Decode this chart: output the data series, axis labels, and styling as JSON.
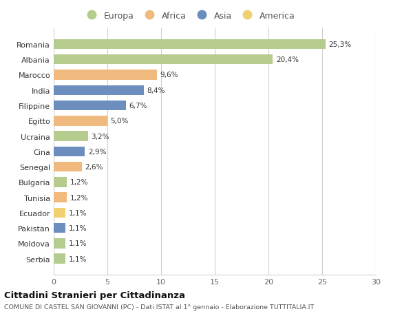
{
  "countries": [
    "Romania",
    "Albania",
    "Marocco",
    "India",
    "Filippine",
    "Egitto",
    "Ucraina",
    "Cina",
    "Senegal",
    "Bulgaria",
    "Tunisia",
    "Ecuador",
    "Pakistan",
    "Moldova",
    "Serbia"
  ],
  "values": [
    25.3,
    20.4,
    9.6,
    8.4,
    6.7,
    5.0,
    3.2,
    2.9,
    2.6,
    1.2,
    1.2,
    1.1,
    1.1,
    1.1,
    1.1
  ],
  "labels": [
    "25,3%",
    "20,4%",
    "9,6%",
    "8,4%",
    "6,7%",
    "5,0%",
    "3,2%",
    "2,9%",
    "2,6%",
    "1,2%",
    "1,2%",
    "1,1%",
    "1,1%",
    "1,1%",
    "1,1%"
  ],
  "continents": [
    "Europa",
    "Europa",
    "Africa",
    "Asia",
    "Asia",
    "Africa",
    "Europa",
    "Asia",
    "Africa",
    "Europa",
    "Africa",
    "America",
    "Asia",
    "Europa",
    "Europa"
  ],
  "colors": {
    "Europa": "#b5cc8e",
    "Africa": "#f0b97e",
    "Asia": "#6c8ebf",
    "America": "#f0d070"
  },
  "xlim": [
    0,
    30
  ],
  "xticks": [
    0,
    5,
    10,
    15,
    20,
    25,
    30
  ],
  "title": "Cittadini Stranieri per Cittadinanza",
  "subtitle": "COMUNE DI CASTEL SAN GIOVANNI (PC) - Dati ISTAT al 1° gennaio - Elaborazione TUTTITALIA.IT",
  "background_color": "#ffffff",
  "grid_color": "#d0d0d0"
}
